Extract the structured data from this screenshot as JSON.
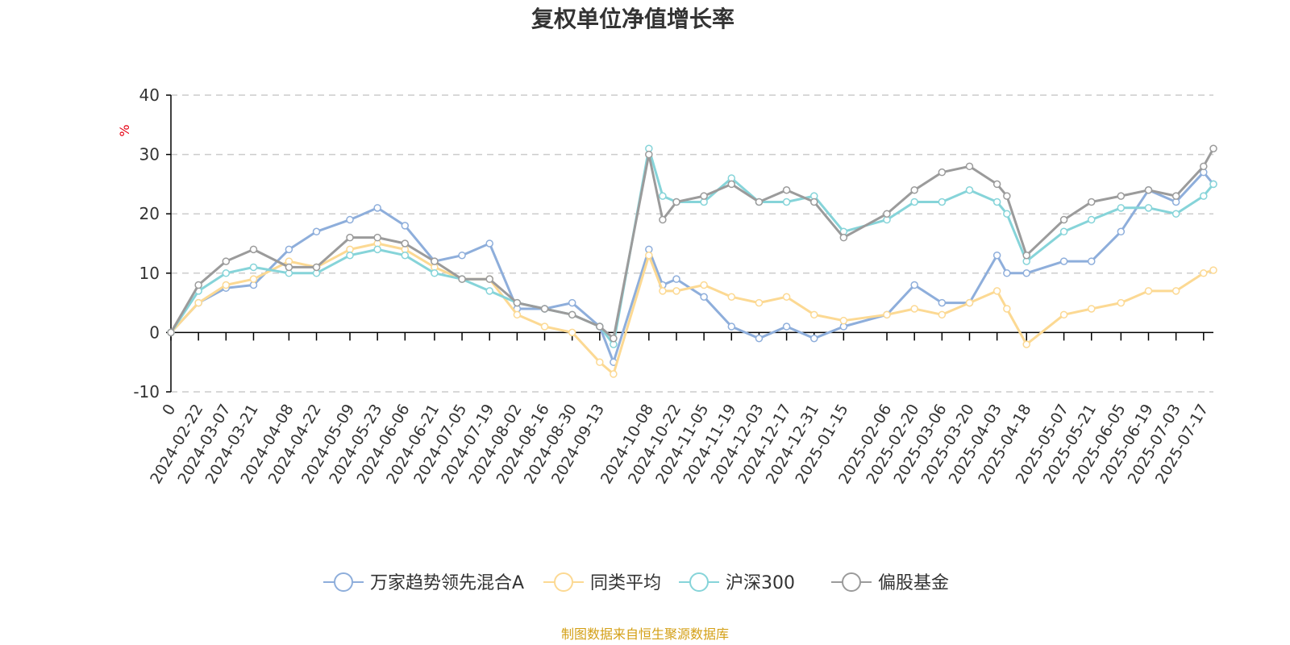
{
  "chart_data": {
    "type": "line",
    "title": "复权单位净值增长率",
    "ylabel": "%",
    "ylim": [
      -10,
      40
    ],
    "yticks": [
      -10,
      0,
      10,
      20,
      30,
      40
    ],
    "x_first_tick_label": "0",
    "x_tick_labels": [
      "2024-02-22",
      "2024-03-07",
      "2024-03-21",
      "2024-04-08",
      "2024-04-22",
      "2024-05-09",
      "2024-05-23",
      "2024-06-06",
      "2024-06-21",
      "2024-07-05",
      "2024-07-19",
      "2024-08-02",
      "2024-08-16",
      "2024-08-30",
      "2024-09-13",
      "2024-10-08",
      "2024-10-22",
      "2024-11-05",
      "2024-11-19",
      "2024-12-03",
      "2024-12-17",
      "2024-12-31",
      "2025-01-15",
      "2025-02-06",
      "2025-02-20",
      "2025-03-06",
      "2025-03-20",
      "2025-04-03",
      "2025-04-18",
      "2025-05-07",
      "2025-05-21",
      "2025-06-05",
      "2025-06-19",
      "2025-07-03",
      "2025-07-17"
    ],
    "grid": true,
    "legend_position": "bottom",
    "x": [
      "2024-02-08",
      "2024-02-22",
      "2024-03-07",
      "2024-03-21",
      "2024-04-08",
      "2024-04-22",
      "2024-05-09",
      "2024-05-23",
      "2024-06-06",
      "2024-06-21",
      "2024-07-05",
      "2024-07-19",
      "2024-08-02",
      "2024-08-16",
      "2024-08-30",
      "2024-09-13",
      "2024-09-20",
      "2024-10-08",
      "2024-10-15",
      "2024-10-22",
      "2024-11-05",
      "2024-11-19",
      "2024-12-03",
      "2024-12-17",
      "2024-12-31",
      "2025-01-15",
      "2025-02-06",
      "2025-02-20",
      "2025-03-06",
      "2025-03-20",
      "2025-04-03",
      "2025-04-08",
      "2025-04-18",
      "2025-05-07",
      "2025-05-21",
      "2025-06-05",
      "2025-06-19",
      "2025-07-03",
      "2025-07-17",
      "2025-07-22"
    ],
    "series": [
      {
        "name": "万家趋势领先混合A",
        "color": "#8eaedb",
        "values": [
          0,
          5,
          7.5,
          8,
          14,
          17,
          19,
          21,
          18,
          12,
          13,
          15,
          4,
          4,
          5,
          1,
          -5,
          14,
          8,
          9,
          6,
          1,
          -1,
          1,
          -1,
          1,
          3,
          8,
          5,
          5,
          13,
          10,
          10,
          12,
          12,
          17,
          24,
          22,
          27,
          25
        ]
      },
      {
        "name": "同类平均",
        "color": "#fcd993",
        "values": [
          0,
          5,
          8,
          9,
          12,
          11,
          14,
          15,
          14,
          11,
          9,
          9,
          3,
          1,
          0,
          -5,
          -7,
          13,
          7,
          7,
          8,
          6,
          5,
          6,
          3,
          2,
          3,
          4,
          3,
          5,
          7,
          4,
          -2,
          3,
          4,
          5,
          7,
          7,
          10,
          10.5
        ]
      },
      {
        "name": "沪深300",
        "color": "#86d4d9",
        "values": [
          0,
          7,
          10,
          11,
          10,
          10,
          13,
          14,
          13,
          10,
          9,
          7,
          5,
          4,
          3,
          1,
          -2,
          31,
          23,
          22,
          22,
          26,
          22,
          22,
          23,
          17,
          19,
          22,
          22,
          24,
          22,
          20,
          12,
          17,
          19,
          21,
          21,
          20,
          23,
          25
        ]
      },
      {
        "name": "偏股基金",
        "color": "#9b9b9b",
        "values": [
          0,
          8,
          12,
          14,
          11,
          11,
          16,
          16,
          15,
          12,
          9,
          9,
          5,
          4,
          3,
          1,
          -1,
          30,
          19,
          22,
          23,
          25,
          22,
          24,
          22,
          16,
          20,
          24,
          27,
          28,
          25,
          23,
          13,
          19,
          22,
          23,
          24,
          23,
          28,
          31
        ]
      }
    ]
  },
  "source_note": "制图数据来自恒生聚源数据库"
}
